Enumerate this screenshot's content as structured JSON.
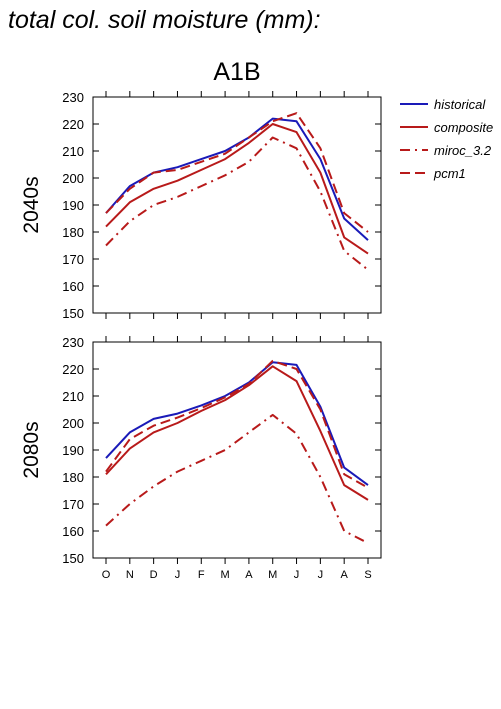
{
  "page_title": "total col. soil moisture (mm):",
  "scenario": "A1B",
  "legend": {
    "historical": "historical",
    "composite": "composite",
    "miroc": "miroc_3.2",
    "pcm": "pcm1"
  },
  "colors": {
    "historical": "#1a1ab8",
    "composite": "#b81a1a",
    "miroc": "#b81a1a",
    "pcm": "#b81a1a"
  },
  "months": [
    "O",
    "N",
    "D",
    "J",
    "F",
    "M",
    "A",
    "M",
    "J",
    "J",
    "A",
    "S"
  ],
  "y_ticks": [
    "150",
    "160",
    "170",
    "180",
    "190",
    "200",
    "210",
    "220",
    "230"
  ],
  "chart_data": [
    {
      "type": "line",
      "row_label": "2040s",
      "ylim": [
        150,
        230
      ],
      "categories": [
        "O",
        "N",
        "D",
        "J",
        "F",
        "M",
        "A",
        "M",
        "J",
        "J",
        "A",
        "S"
      ],
      "series": [
        {
          "name": "historical",
          "values": [
            187,
            197,
            202,
            204,
            207,
            210,
            215,
            222,
            221,
            207,
            185,
            177
          ]
        },
        {
          "name": "composite",
          "values": [
            182,
            191,
            196,
            199,
            203,
            207,
            213,
            220,
            217,
            202,
            178,
            172
          ]
        },
        {
          "name": "miroc_3.2",
          "values": [
            175,
            184,
            190,
            193,
            197,
            201,
            206,
            215,
            211,
            195,
            173,
            166
          ]
        },
        {
          "name": "pcm1",
          "values": [
            187,
            196,
            202,
            203,
            206,
            209,
            215,
            221,
            224,
            211,
            187,
            180
          ]
        }
      ]
    },
    {
      "type": "line",
      "row_label": "2080s",
      "ylim": [
        150,
        230
      ],
      "categories": [
        "O",
        "N",
        "D",
        "J",
        "F",
        "M",
        "A",
        "M",
        "J",
        "J",
        "A",
        "S"
      ],
      "series": [
        {
          "name": "historical",
          "values": [
            187,
            196.5,
            201.5,
            203.5,
            206.5,
            210,
            215,
            222.5,
            221.5,
            206,
            183.5,
            177
          ]
        },
        {
          "name": "composite",
          "values": [
            181,
            190.5,
            196.5,
            200,
            204.5,
            208.5,
            214,
            221,
            215.5,
            197,
            177,
            171.5
          ]
        },
        {
          "name": "miroc_3.2",
          "values": [
            162,
            170,
            176.5,
            182,
            186,
            190,
            196.5,
            203,
            196,
            180,
            160,
            155.5
          ]
        },
        {
          "name": "pcm1",
          "values": [
            182,
            194,
            199,
            202,
            205.5,
            209.5,
            214.5,
            223,
            220,
            205,
            181,
            176
          ]
        }
      ]
    }
  ]
}
